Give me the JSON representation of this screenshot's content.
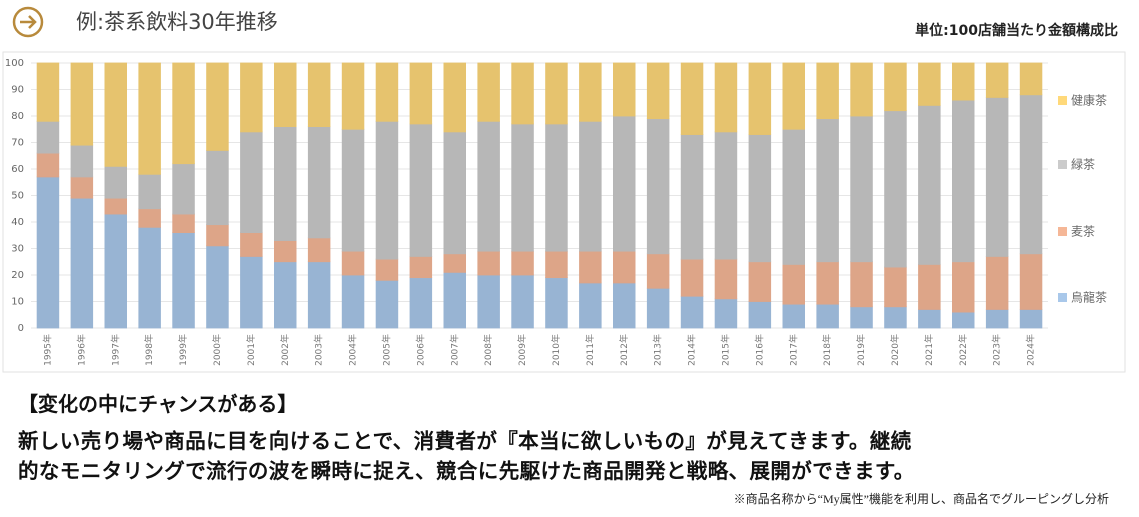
{
  "chart_data": {
    "type": "stacked_bar",
    "title": "例:茶系飲料30年推移",
    "subtitle": "単位:100店舗当たり金額構成比",
    "categories": [
      "1995年",
      "1996年",
      "1997年",
      "1998年",
      "1999年",
      "2000年",
      "2001年",
      "2002年",
      "2003年",
      "2004年",
      "2005年",
      "2006年",
      "2007年",
      "2008年",
      "2009年",
      "2010年",
      "2011年",
      "2012年",
      "2013年",
      "2014年",
      "2015年",
      "2016年",
      "2017年",
      "2018年",
      "2019年",
      "2020年",
      "2021年",
      "2022年",
      "2023年",
      "2024年"
    ],
    "series": [
      {
        "name": "烏龍茶",
        "color": "#a9c8ea",
        "values": [
          57,
          49,
          43,
          38,
          36,
          31,
          27,
          25,
          25,
          20,
          18,
          19,
          21,
          20,
          20,
          19,
          17,
          17,
          15,
          12,
          11,
          10,
          9,
          9,
          8,
          8,
          7,
          6,
          7,
          7
        ]
      },
      {
        "name": "麦茶",
        "color": "#f5b797",
        "values": [
          9,
          8,
          6,
          7,
          7,
          8,
          9,
          8,
          9,
          9,
          8,
          8,
          7,
          9,
          9,
          10,
          12,
          12,
          13,
          14,
          15,
          15,
          15,
          16,
          17,
          15,
          17,
          19,
          20,
          21
        ]
      },
      {
        "name": "緑茶",
        "color": "#cbcbcb",
        "values": [
          12,
          12,
          12,
          13,
          19,
          28,
          38,
          43,
          42,
          46,
          52,
          50,
          46,
          49,
          48,
          48,
          49,
          51,
          51,
          47,
          48,
          48,
          51,
          54,
          55,
          59,
          60,
          61,
          60,
          60
        ]
      },
      {
        "name": "健康茶",
        "color": "#ffd97a",
        "values": [
          22,
          31,
          39,
          42,
          38,
          33,
          26,
          24,
          24,
          25,
          22,
          23,
          26,
          22,
          23,
          23,
          22,
          20,
          21,
          27,
          26,
          27,
          25,
          21,
          20,
          18,
          16,
          14,
          13,
          12
        ]
      }
    ],
    "ylim": [
      0,
      100
    ],
    "yticks": [
      0,
      10,
      20,
      30,
      40,
      50,
      60,
      70,
      80,
      90,
      100
    ],
    "grid": true,
    "legend": "right"
  },
  "body": {
    "heading": "【変化の中にチャンスがある】",
    "lines": [
      "新しい売り場や商品に目を向けることで、消費者が『本当に欲しいもの』が見えてきます。継続",
      "的なモニタリングで流行の波を瞬時に捉え、競合に先駆けた商品開発と戦略、展開ができます。"
    ],
    "note": "※商品名称から“My属性”機能を利用し、商品名でグルーピングし分析"
  }
}
